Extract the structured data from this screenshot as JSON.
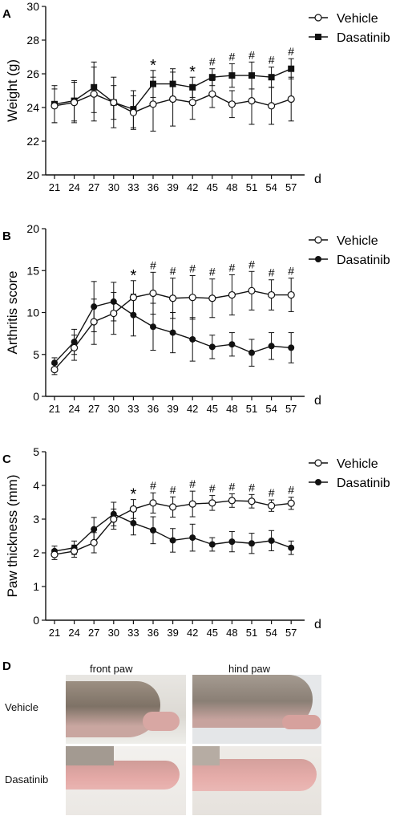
{
  "colors": {
    "line": "#111111",
    "background": "#ffffff"
  },
  "photos": {
    "letter": "D",
    "col_labels": [
      "front paw",
      "hind paw"
    ],
    "row_labels": [
      "Vehicle",
      "Dasatinib"
    ]
  },
  "chart_data": [
    {
      "type": "line",
      "panel": "A",
      "ylabel": "Weight (g)",
      "xlabel": "d",
      "x": [
        21,
        24,
        27,
        30,
        33,
        36,
        39,
        42,
        45,
        48,
        51,
        54,
        57
      ],
      "ylim": [
        20,
        30
      ],
      "yticks": [
        20,
        22,
        24,
        26,
        28,
        30
      ],
      "legend": "top-right",
      "series": [
        {
          "name": "Vehicle",
          "marker": "open-circle",
          "values": [
            24.1,
            24.3,
            24.8,
            24.3,
            23.7,
            24.2,
            24.5,
            24.3,
            24.8,
            24.2,
            24.4,
            24.1,
            24.5
          ],
          "err": [
            1.0,
            1.2,
            1.6,
            1.5,
            1.0,
            1.6,
            1.6,
            1.0,
            0.8,
            0.8,
            1.4,
            1.1,
            1.3
          ]
        },
        {
          "name": "Dasatinib",
          "marker": "filled-square",
          "values": [
            24.2,
            24.4,
            25.2,
            24.3,
            23.9,
            25.4,
            25.4,
            25.2,
            25.8,
            25.9,
            25.9,
            25.8,
            26.3
          ],
          "err": [
            1.1,
            1.2,
            1.5,
            1.0,
            1.1,
            0.8,
            0.9,
            0.6,
            0.5,
            0.7,
            0.8,
            0.6,
            0.6
          ]
        }
      ],
      "annotations": [
        "",
        "",
        "",
        "",
        "",
        "*",
        "",
        "*",
        "#",
        "#",
        "#",
        "#",
        "#"
      ]
    },
    {
      "type": "line",
      "panel": "B",
      "ylabel": "Arthritis score",
      "xlabel": "d",
      "x": [
        21,
        24,
        27,
        30,
        33,
        36,
        39,
        42,
        45,
        48,
        51,
        54,
        57
      ],
      "ylim": [
        0,
        20
      ],
      "yticks": [
        0,
        5,
        10,
        15,
        20
      ],
      "legend": "top-right",
      "series": [
        {
          "name": "Vehicle",
          "marker": "open-circle",
          "values": [
            3.2,
            5.8,
            8.9,
            9.9,
            11.8,
            12.3,
            11.7,
            11.8,
            11.7,
            12.1,
            12.6,
            12.1,
            12.1
          ],
          "err": [
            0.6,
            1.5,
            2.7,
            2.5,
            2.0,
            2.5,
            2.4,
            2.6,
            2.3,
            2.4,
            2.3,
            1.8,
            2.0
          ]
        },
        {
          "name": "Dasatinib",
          "marker": "filled-circle",
          "values": [
            4.0,
            6.5,
            10.7,
            11.3,
            9.7,
            8.3,
            7.6,
            6.8,
            5.9,
            6.2,
            5.2,
            6.0,
            5.8
          ],
          "err": [
            0.6,
            1.5,
            3.0,
            2.3,
            2.5,
            2.8,
            2.4,
            2.6,
            1.4,
            1.4,
            1.6,
            1.6,
            1.8
          ]
        }
      ],
      "annotations": [
        "",
        "",
        "",
        "",
        "*",
        "#",
        "#",
        "#",
        "#",
        "#",
        "#",
        "#",
        "#"
      ]
    },
    {
      "type": "line",
      "panel": "C",
      "ylabel": "Paw thickness (mm)",
      "xlabel": "d",
      "x": [
        21,
        24,
        27,
        30,
        33,
        36,
        39,
        42,
        45,
        48,
        51,
        54,
        57
      ],
      "ylim": [
        0,
        5
      ],
      "yticks": [
        0,
        1,
        2,
        3,
        4,
        5
      ],
      "legend": "top-right",
      "series": [
        {
          "name": "Vehicle",
          "marker": "open-circle",
          "values": [
            1.95,
            2.05,
            2.3,
            3.0,
            3.3,
            3.48,
            3.36,
            3.45,
            3.48,
            3.55,
            3.53,
            3.4,
            3.47
          ],
          "err": [
            0.15,
            0.18,
            0.3,
            0.3,
            0.28,
            0.3,
            0.3,
            0.38,
            0.22,
            0.2,
            0.2,
            0.17,
            0.18
          ]
        },
        {
          "name": "Dasatinib",
          "marker": "filled-circle",
          "values": [
            2.05,
            2.15,
            2.7,
            3.15,
            2.88,
            2.67,
            2.37,
            2.45,
            2.25,
            2.33,
            2.28,
            2.36,
            2.15
          ],
          "err": [
            0.15,
            0.2,
            0.35,
            0.35,
            0.35,
            0.4,
            0.35,
            0.4,
            0.2,
            0.3,
            0.3,
            0.3,
            0.2
          ]
        }
      ],
      "annotations": [
        "",
        "",
        "",
        "",
        "*",
        "#",
        "#",
        "#",
        "#",
        "#",
        "#",
        "#",
        "#"
      ]
    }
  ]
}
